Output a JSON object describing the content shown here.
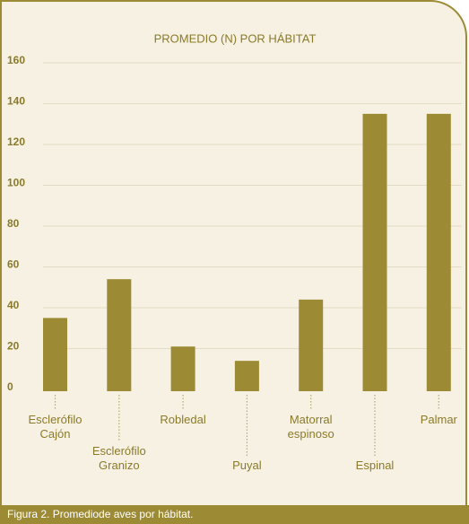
{
  "chart_data": {
    "type": "bar",
    "title": "PROMEDIO (N) POR HÁBITAT",
    "categories": [
      "Esclerófilo Cajón",
      "Esclerófilo Granizo",
      "Robledal",
      "Puyal",
      "Matorral espinoso",
      "Espinal",
      "Palmar"
    ],
    "values": [
      35,
      54,
      21,
      14,
      44,
      135,
      135
    ],
    "color": "#9c8b34",
    "ylim": [
      0,
      160
    ],
    "yticks": [
      0,
      20,
      40,
      60,
      80,
      100,
      120,
      140,
      160
    ],
    "grid": true,
    "caption": "Figura 2. Promediode aves por hábitat."
  }
}
